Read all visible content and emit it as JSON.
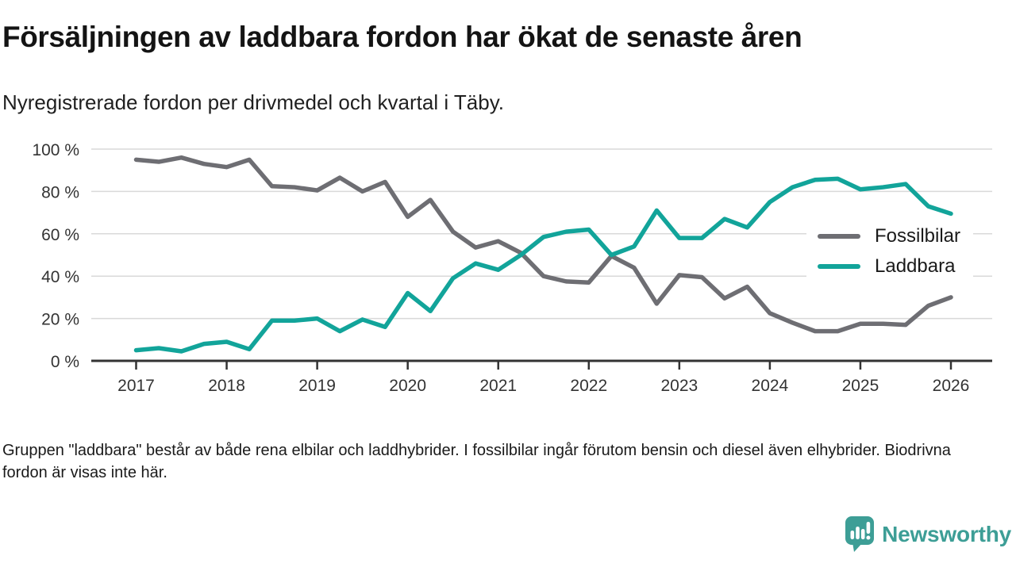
{
  "title": "Försäljningen av laddbara fordon har ökat de senaste åren",
  "subtitle": "Nyregistrerade fordon per drivmedel och kvartal i Täby.",
  "footnote": "Gruppen \"laddbara\" består av både rena elbilar och laddhybrider. I fossilbilar ingår förutom bensin och diesel även elhybrider. Biodrivna fordon är visas inte här.",
  "branding": {
    "name": "Newsworthy",
    "color": "#3d9e96",
    "icon": "speech-bubble-bar-chart-icon"
  },
  "colors": {
    "fossil_line": "#6e6e73",
    "laddbara_line": "#12a49a",
    "grid": "#d9d9d9",
    "axis": "#333333",
    "title_text": "#141414",
    "background": "#ffffff"
  },
  "chart_data": {
    "type": "line",
    "frequency": "quarterly",
    "x_start": "2017 Q1",
    "x_end": "2026 Q1",
    "points_per_year": 4,
    "x_tick_labels": [
      "2017",
      "2018",
      "2019",
      "2020",
      "2021",
      "2022",
      "2023",
      "2024",
      "2025",
      "2026"
    ],
    "y_tick_labels": [
      "0 %",
      "20 %",
      "40 %",
      "60 %",
      "80 %",
      "100 %"
    ],
    "ylim": [
      0,
      100
    ],
    "unit": "%",
    "grid": "horizontal",
    "legend_position": "inside-right",
    "series": [
      {
        "name": "Fossilbilar",
        "color": "#6e6e73",
        "values": [
          95,
          94,
          96,
          93,
          91.5,
          95,
          82.5,
          82,
          80.5,
          86.5,
          80,
          84.5,
          68,
          76,
          61,
          53.5,
          56.5,
          51,
          40,
          37.5,
          37,
          49.5,
          44,
          27,
          40.5,
          39.5,
          29.5,
          35,
          22.5,
          18,
          14,
          14,
          17.5,
          17.5,
          17,
          26,
          30
        ]
      },
      {
        "name": "Laddbara",
        "color": "#12a49a",
        "values": [
          5,
          6,
          4.5,
          8,
          9,
          5.5,
          19,
          19,
          20,
          14,
          19.5,
          16,
          32,
          23.5,
          39,
          46,
          43,
          50,
          58.5,
          61,
          62,
          50,
          54,
          71,
          58,
          58,
          67,
          63,
          75,
          82,
          85.5,
          86,
          81,
          82,
          83.5,
          73,
          69.5
        ]
      }
    ]
  }
}
